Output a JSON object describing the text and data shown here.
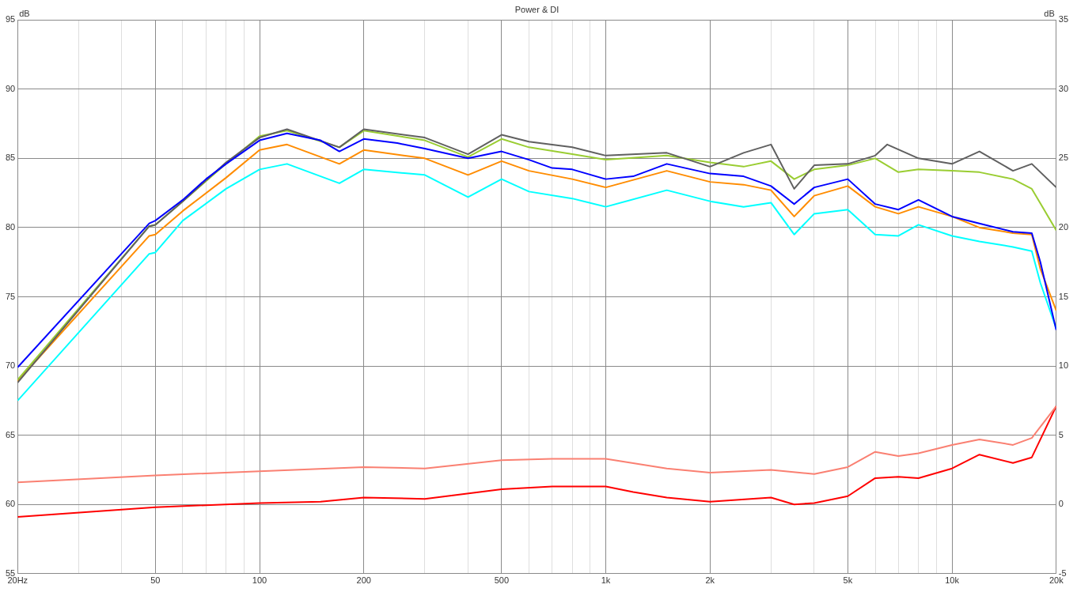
{
  "chart_data": {
    "type": "line",
    "title": "Power & DI",
    "ylabel": "dB",
    "y2label": "dB",
    "xlim": [
      20,
      20000
    ],
    "xticks": [
      {
        "value": 20,
        "label": "20Hz"
      },
      {
        "value": 30,
        "label": null
      },
      {
        "value": 40,
        "label": null
      },
      50,
      {
        "value": 60,
        "label": null
      },
      {
        "value": 70,
        "label": null
      },
      {
        "value": 80,
        "label": null
      },
      {
        "value": 90,
        "label": null
      },
      100,
      200,
      {
        "value": 300,
        "label": null
      },
      {
        "value": 400,
        "label": null
      },
      500,
      {
        "value": 600,
        "label": null
      },
      {
        "value": 700,
        "label": null
      },
      {
        "value": 800,
        "label": null
      },
      {
        "value": 900,
        "label": null
      },
      {
        "value": 1000,
        "label": "1k"
      },
      {
        "value": 2000,
        "label": "2k"
      },
      {
        "value": 3000,
        "label": null
      },
      {
        "value": 4000,
        "label": null
      },
      {
        "value": 5000,
        "label": "5k"
      },
      {
        "value": 6000,
        "label": null
      },
      {
        "value": 7000,
        "label": null
      },
      {
        "value": 8000,
        "label": null
      },
      {
        "value": 9000,
        "label": null
      },
      {
        "value": 10000,
        "label": "10k"
      },
      {
        "value": 20000,
        "label": "20k"
      }
    ],
    "ylim": [
      55,
      95
    ],
    "yticks": [
      55,
      60,
      65,
      70,
      75,
      80,
      85,
      90,
      95
    ],
    "y2lim": [
      -5,
      35
    ],
    "y2ticks": [
      -5,
      0,
      5,
      10,
      15,
      20,
      25,
      30,
      35
    ],
    "log": "x",
    "grid": true,
    "legend": false,
    "marker": "none",
    "line_style": "solid",
    "series": [
      {
        "color": "#0000ff",
        "x": [
          20,
          48,
          50,
          60,
          70,
          80,
          100,
          120,
          150,
          170,
          200,
          250,
          300,
          400,
          500,
          600,
          700,
          800,
          1000,
          1200,
          1500,
          2000,
          2500,
          3000,
          3500,
          4000,
          5000,
          6000,
          7000,
          8000,
          10000,
          12000,
          15000,
          17000,
          18000,
          20000
        ],
        "values": [
          69.9,
          80.3,
          80.5,
          82.0,
          83.5,
          84.6,
          86.3,
          86.8,
          86.3,
          85.5,
          86.4,
          86.1,
          85.7,
          85.0,
          85.5,
          84.9,
          84.3,
          84.2,
          83.5,
          83.7,
          84.6,
          83.9,
          83.7,
          83.0,
          81.7,
          82.9,
          83.5,
          81.7,
          81.3,
          82.0,
          80.8,
          80.3,
          79.7,
          79.6,
          77.5,
          72.6
        ]
      },
      {
        "color": "#606060",
        "x": [
          20,
          48,
          50,
          60,
          80,
          100,
          120,
          170,
          200,
          300,
          400,
          500,
          600,
          800,
          1000,
          1500,
          2000,
          2500,
          3000,
          3500,
          4000,
          5000,
          6000,
          6500,
          8000,
          10000,
          12000,
          15000,
          17000,
          20000
        ],
        "values": [
          68.8,
          80.1,
          80.2,
          81.9,
          84.7,
          86.5,
          87.1,
          85.8,
          87.1,
          86.5,
          85.3,
          86.7,
          86.2,
          85.8,
          85.2,
          85.4,
          84.4,
          85.4,
          86.0,
          82.8,
          84.5,
          84.6,
          85.2,
          86.0,
          85.0,
          84.6,
          85.5,
          84.1,
          84.6,
          82.9
        ]
      },
      {
        "color": "#9acd32",
        "x": [
          20,
          48,
          50,
          60,
          80,
          100,
          120,
          170,
          200,
          300,
          400,
          500,
          600,
          800,
          1000,
          1500,
          2000,
          2500,
          3000,
          3500,
          4000,
          5000,
          6000,
          7000,
          8000,
          10000,
          12000,
          15000,
          17000,
          20000
        ],
        "values": [
          69.0,
          80.1,
          80.2,
          81.9,
          84.6,
          86.6,
          87.0,
          85.8,
          87.0,
          86.3,
          85.1,
          86.4,
          85.8,
          85.3,
          84.9,
          85.2,
          84.7,
          84.4,
          84.8,
          83.5,
          84.2,
          84.5,
          85.0,
          84.0,
          84.2,
          84.1,
          84.0,
          83.5,
          82.8,
          79.8
        ]
      },
      {
        "color": "#ff8c00",
        "x": [
          20,
          48,
          50,
          60,
          80,
          100,
          120,
          170,
          200,
          300,
          400,
          500,
          600,
          800,
          1000,
          1500,
          2000,
          2500,
          3000,
          3500,
          4000,
          5000,
          6000,
          7000,
          8000,
          10000,
          12000,
          15000,
          17000,
          18000,
          20000
        ],
        "values": [
          68.9,
          79.4,
          79.5,
          81.2,
          83.6,
          85.6,
          86.0,
          84.6,
          85.6,
          85.0,
          83.8,
          84.8,
          84.1,
          83.5,
          82.9,
          84.1,
          83.3,
          83.1,
          82.7,
          80.8,
          82.3,
          83.0,
          81.5,
          81.0,
          81.5,
          80.8,
          80.0,
          79.6,
          79.5,
          77.0,
          74.0
        ]
      },
      {
        "color": "#00ffff",
        "x": [
          20,
          48,
          50,
          60,
          80,
          100,
          120,
          170,
          200,
          300,
          400,
          500,
          600,
          800,
          1000,
          1500,
          2000,
          2500,
          3000,
          3500,
          4000,
          5000,
          6000,
          7000,
          8000,
          10000,
          12000,
          15000,
          17000,
          18000,
          20000
        ],
        "values": [
          67.5,
          78.1,
          78.2,
          80.5,
          82.8,
          84.2,
          84.6,
          83.2,
          84.2,
          83.8,
          82.2,
          83.5,
          82.6,
          82.1,
          81.5,
          82.7,
          81.9,
          81.5,
          81.8,
          79.5,
          81.0,
          81.3,
          79.5,
          79.4,
          80.2,
          79.4,
          79.0,
          78.6,
          78.3,
          76.0,
          72.7
        ]
      },
      {
        "color": "#fa8072",
        "axis": "y2",
        "x": [
          20,
          50,
          100,
          200,
          300,
          500,
          700,
          1000,
          1500,
          2000,
          3000,
          4000,
          5000,
          6000,
          7000,
          8000,
          10000,
          12000,
          15000,
          17000,
          20000
        ],
        "values": [
          1.6,
          2.1,
          2.4,
          2.7,
          2.6,
          3.2,
          3.3,
          3.3,
          2.6,
          2.3,
          2.5,
          2.2,
          2.7,
          3.8,
          3.5,
          3.7,
          4.3,
          4.7,
          4.3,
          4.8,
          7.1
        ]
      },
      {
        "color": "#ff0000",
        "axis": "y2",
        "x": [
          20,
          50,
          100,
          150,
          200,
          300,
          500,
          700,
          1000,
          1200,
          1500,
          2000,
          3000,
          3500,
          4000,
          5000,
          6000,
          7000,
          8000,
          10000,
          12000,
          15000,
          17000,
          20000
        ],
        "values": [
          -0.9,
          -0.2,
          0.1,
          0.2,
          0.5,
          0.4,
          1.1,
          1.3,
          1.3,
          0.9,
          0.5,
          0.2,
          0.5,
          0.0,
          0.1,
          0.6,
          1.9,
          2.0,
          1.9,
          2.6,
          3.6,
          3.0,
          3.4,
          7.1
        ]
      }
    ]
  }
}
